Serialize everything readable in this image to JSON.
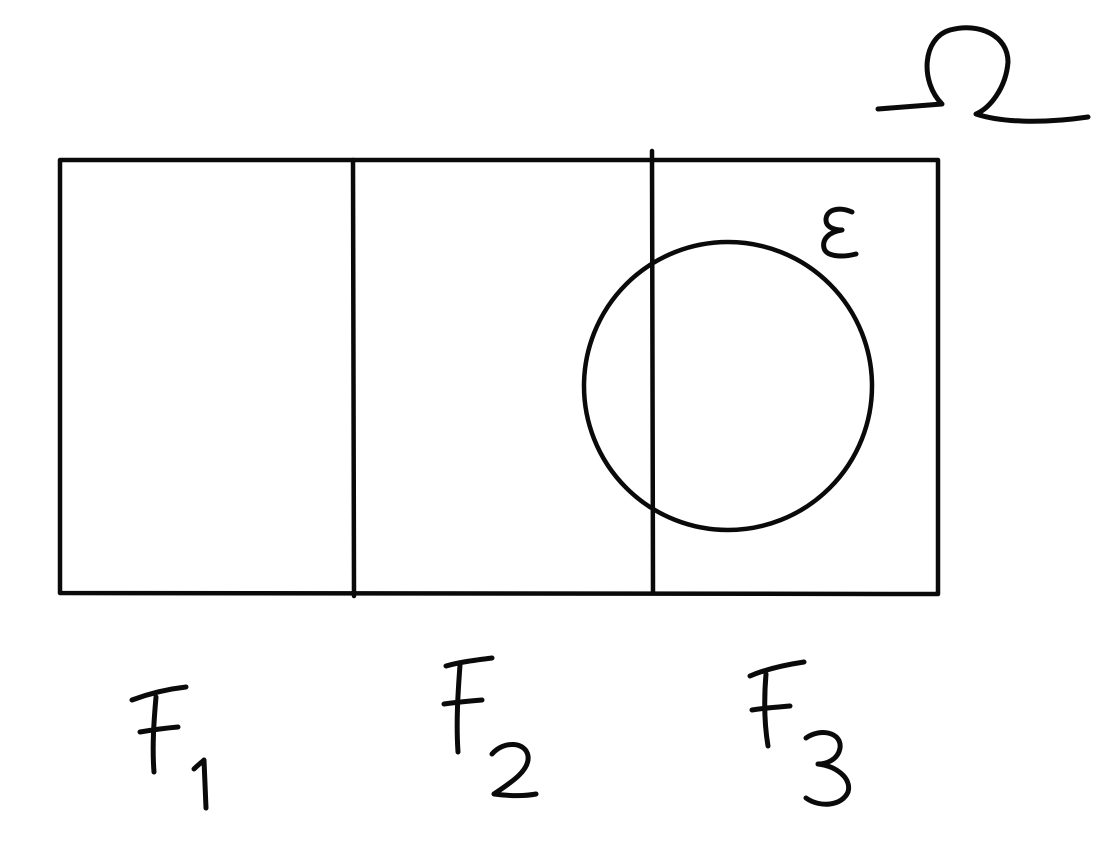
{
  "diagram": {
    "sample_space_label": "Ω",
    "event_label": "E",
    "partitions": [
      {
        "label": "F",
        "subscript": "1"
      },
      {
        "label": "F",
        "subscript": "2"
      },
      {
        "label": "F",
        "subscript": "3"
      }
    ],
    "ink_color": "#0a0a0a",
    "background_color": "#ffffff"
  }
}
